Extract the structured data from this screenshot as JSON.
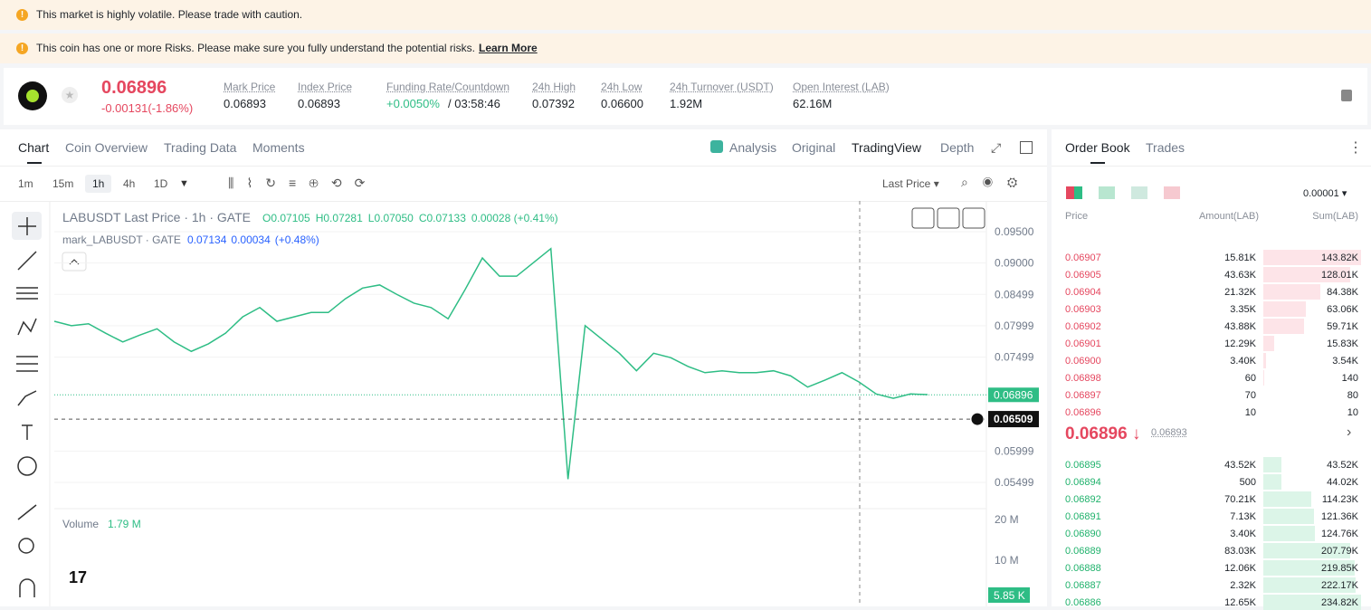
{
  "banners": [
    "This market is highly volatile. Please trade with caution.",
    "This coin has one or more Risks. Please make sure you fully understand the potential risks."
  ],
  "learn_more": "Learn More",
  "ticker": {
    "price": "0.06896",
    "change": "-0.00131(-1.86%)",
    "stats": [
      {
        "label": "Mark Price",
        "value": "0.06893"
      },
      {
        "label": "Index Price",
        "value": "0.06893"
      },
      {
        "label": "Funding Rate/Countdown",
        "value": "+0.0050%",
        "extra": "/ 03:58:46"
      },
      {
        "label": "24h High",
        "value": "0.07392"
      },
      {
        "label": "24h Low",
        "value": "0.06600"
      },
      {
        "label": "24h Turnover (USDT)",
        "value": "1.92M"
      },
      {
        "label": "Open Interest (LAB)",
        "value": "62.16M"
      }
    ]
  },
  "chart_tabs": [
    "Chart",
    "Coin Overview",
    "Trading Data",
    "Moments"
  ],
  "view_tabs": [
    "Analysis",
    "Original",
    "TradingView",
    "Depth"
  ],
  "intervals": [
    "1m",
    "15m",
    "1h",
    "4h",
    "1D"
  ],
  "price_source": "Last Price",
  "legend": {
    "symbol": "LABUSDT Last Price · 1h · GATE",
    "ohlc": [
      "O0.07105",
      "H0.07281",
      "L0.07050",
      "C0.07133",
      "0.00028 (+0.41%)"
    ],
    "mark": "mark_LABUSDT · GATE",
    "mark_values": [
      "0.07134",
      "0.00034",
      "(+0.48%)"
    ]
  },
  "chart_data": {
    "type": "line",
    "color": "#2ebd85",
    "values": [
      0.0807,
      0.08,
      0.0803,
      0.0788,
      0.0774,
      0.0785,
      0.0795,
      0.0774,
      0.0759,
      0.0771,
      0.0788,
      0.0814,
      0.0829,
      0.0807,
      0.0814,
      0.0821,
      0.0821,
      0.0843,
      0.086,
      0.0865,
      0.085,
      0.0836,
      0.0829,
      0.0811,
      0.0858,
      0.0908,
      0.0879,
      0.0879,
      0.0901,
      0.0923,
      0.0555,
      0.08,
      0.0778,
      0.0756,
      0.0728,
      0.0756,
      0.0749,
      0.0735,
      0.0725,
      0.0728,
      0.0725,
      0.0725,
      0.0728,
      0.072,
      0.0702,
      0.0713,
      0.0725,
      0.071,
      0.0691,
      0.0684,
      0.0691,
      0.069
    ],
    "ylim": [
      0.0508,
      0.0989
    ],
    "yticks": [
      {
        "value": 0.095,
        "label": "0.09500"
      },
      {
        "value": 0.09,
        "label": "0.09000"
      },
      {
        "value": 0.08499,
        "label": "0.08499"
      },
      {
        "value": 0.07999,
        "label": "0.07999"
      },
      {
        "value": 0.07499,
        "label": "0.07499"
      },
      {
        "value": 0.05999,
        "label": "0.05999"
      },
      {
        "value": 0.05499,
        "label": "0.05499"
      }
    ],
    "last_price": {
      "value": 0.06896,
      "label": "0.06896"
    },
    "crosshair": {
      "value": 0.06509,
      "label": "0.06509"
    }
  },
  "volume": {
    "label": "Volume",
    "value": "1.79 M",
    "axis": [
      "20 M",
      "10 M"
    ],
    "last": "5.85 K"
  },
  "order_book": {
    "tabs": [
      "Order Book",
      "Trades"
    ],
    "precision": "0.00001",
    "headers": [
      "Price",
      "Amount(LAB)",
      "Sum(LAB)"
    ],
    "asks": [
      [
        "0.06907",
        "15.81K",
        "143.82K"
      ],
      [
        "0.06905",
        "43.63K",
        "128.01K"
      ],
      [
        "0.06904",
        "21.32K",
        "84.38K"
      ],
      [
        "0.06903",
        "3.35K",
        "63.06K"
      ],
      [
        "0.06902",
        "43.88K",
        "59.71K"
      ],
      [
        "0.06901",
        "12.29K",
        "15.83K"
      ],
      [
        "0.06900",
        "3.40K",
        "3.54K"
      ],
      [
        "0.06898",
        "60",
        "140"
      ],
      [
        "0.06897",
        "70",
        "80"
      ],
      [
        "0.06896",
        "10",
        "10"
      ]
    ],
    "last": "0.06896",
    "mark": "0.06893",
    "bids": [
      [
        "0.06895",
        "43.52K",
        "43.52K"
      ],
      [
        "0.06894",
        "500",
        "44.02K"
      ],
      [
        "0.06892",
        "70.21K",
        "114.23K"
      ],
      [
        "0.06891",
        "7.13K",
        "121.36K"
      ],
      [
        "0.06890",
        "3.40K",
        "124.76K"
      ],
      [
        "0.06889",
        "83.03K",
        "207.79K"
      ],
      [
        "0.06888",
        "12.06K",
        "219.85K"
      ],
      [
        "0.06887",
        "2.32K",
        "222.17K"
      ],
      [
        "0.06886",
        "12.65K",
        "234.82K"
      ]
    ]
  }
}
